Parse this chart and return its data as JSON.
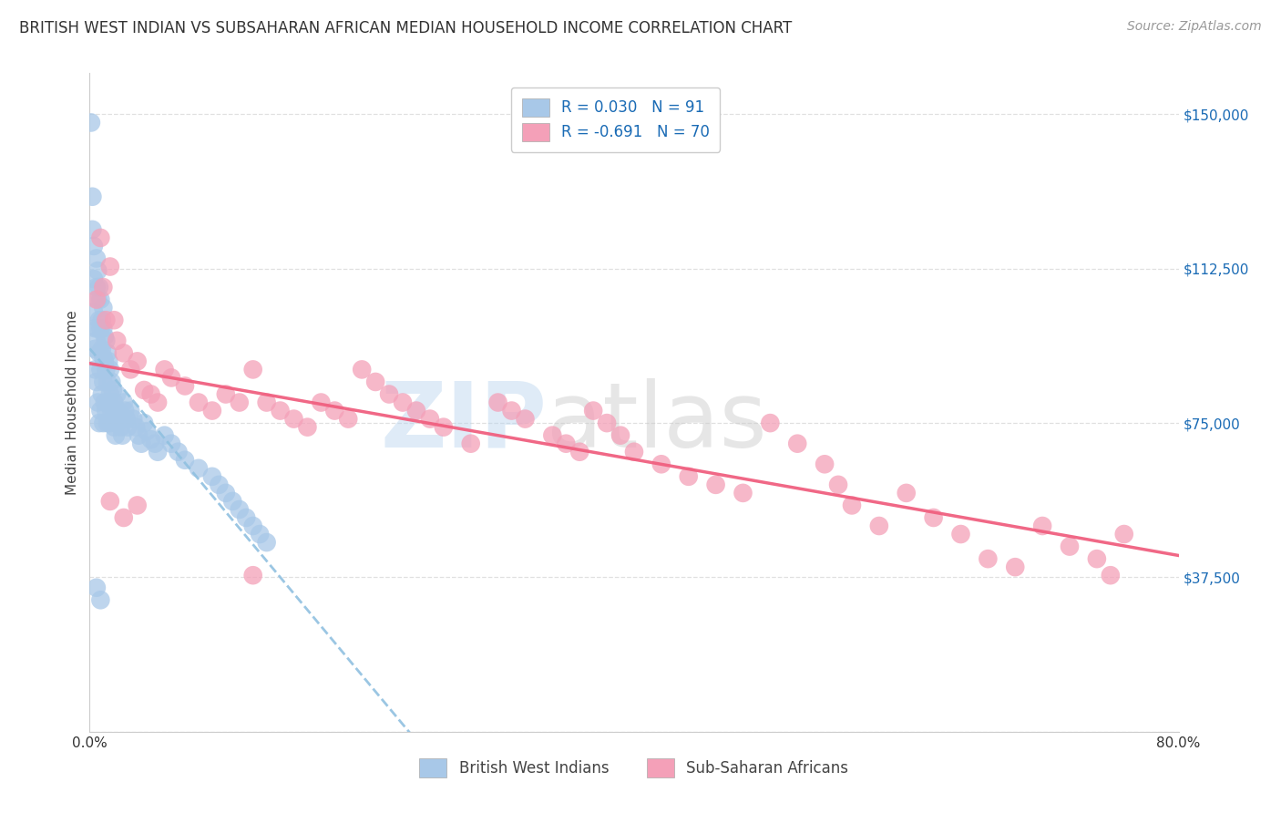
{
  "title": "BRITISH WEST INDIAN VS SUBSAHARAN AFRICAN MEDIAN HOUSEHOLD INCOME CORRELATION CHART",
  "source": "Source: ZipAtlas.com",
  "ylabel": "Median Household Income",
  "xlim": [
    0.0,
    0.8
  ],
  "ylim": [
    0,
    160000
  ],
  "yticks": [
    0,
    37500,
    75000,
    112500,
    150000
  ],
  "ytick_labels": [
    "",
    "$37,500",
    "$75,000",
    "$112,500",
    "$150,000"
  ],
  "xticks": [
    0.0,
    0.1,
    0.2,
    0.3,
    0.4,
    0.5,
    0.6,
    0.7,
    0.8
  ],
  "xtick_labels": [
    "0.0%",
    "",
    "",
    "",
    "",
    "",
    "",
    "",
    "80.0%"
  ],
  "legend_blue_label": "R = 0.030   N = 91",
  "legend_pink_label": "R = -0.691   N = 70",
  "legend_bottom_blue": "British West Indians",
  "legend_bottom_pink": "Sub-Saharan Africans",
  "blue_color": "#a8c8e8",
  "pink_color": "#f4a0b8",
  "blue_line_color": "#90c0e0",
  "pink_line_color": "#f06080",
  "background_color": "#ffffff",
  "grid_color": "#dddddd",
  "blue_x": [
    0.001,
    0.002,
    0.002,
    0.003,
    0.003,
    0.003,
    0.004,
    0.004,
    0.004,
    0.005,
    0.005,
    0.005,
    0.005,
    0.006,
    0.006,
    0.006,
    0.006,
    0.007,
    0.007,
    0.007,
    0.007,
    0.008,
    0.008,
    0.008,
    0.008,
    0.009,
    0.009,
    0.009,
    0.01,
    0.01,
    0.01,
    0.01,
    0.01,
    0.011,
    0.011,
    0.011,
    0.012,
    0.012,
    0.012,
    0.013,
    0.013,
    0.013,
    0.014,
    0.014,
    0.015,
    0.015,
    0.015,
    0.016,
    0.016,
    0.017,
    0.017,
    0.018,
    0.018,
    0.019,
    0.019,
    0.02,
    0.02,
    0.021,
    0.022,
    0.023,
    0.024,
    0.025,
    0.026,
    0.027,
    0.028,
    0.03,
    0.032,
    0.034,
    0.036,
    0.038,
    0.04,
    0.042,
    0.045,
    0.048,
    0.05,
    0.055,
    0.06,
    0.065,
    0.07,
    0.08,
    0.09,
    0.095,
    0.1,
    0.105,
    0.11,
    0.115,
    0.12,
    0.125,
    0.13,
    0.005,
    0.008
  ],
  "blue_y": [
    148000,
    130000,
    122000,
    118000,
    110000,
    102000,
    98000,
    93000,
    88000,
    115000,
    108000,
    95000,
    85000,
    112000,
    105000,
    98000,
    80000,
    108000,
    100000,
    92000,
    75000,
    105000,
    98000,
    88000,
    78000,
    100000,
    93000,
    82000,
    103000,
    98000,
    91000,
    85000,
    75000,
    96000,
    90000,
    80000,
    95000,
    88000,
    78000,
    92000,
    85000,
    75000,
    90000,
    80000,
    88000,
    82000,
    75000,
    85000,
    78000,
    83000,
    76000,
    80000,
    74000,
    78000,
    72000,
    82000,
    75000,
    78000,
    76000,
    74000,
    72000,
    80000,
    78000,
    76000,
    74000,
    78000,
    76000,
    74000,
    72000,
    70000,
    75000,
    73000,
    71000,
    70000,
    68000,
    72000,
    70000,
    68000,
    66000,
    64000,
    62000,
    60000,
    58000,
    56000,
    54000,
    52000,
    50000,
    48000,
    46000,
    35000,
    32000
  ],
  "pink_x": [
    0.005,
    0.008,
    0.01,
    0.012,
    0.015,
    0.018,
    0.02,
    0.025,
    0.03,
    0.035,
    0.04,
    0.045,
    0.05,
    0.055,
    0.06,
    0.07,
    0.08,
    0.09,
    0.1,
    0.11,
    0.12,
    0.13,
    0.14,
    0.15,
    0.16,
    0.17,
    0.18,
    0.19,
    0.2,
    0.21,
    0.22,
    0.23,
    0.24,
    0.25,
    0.26,
    0.28,
    0.3,
    0.31,
    0.32,
    0.34,
    0.35,
    0.36,
    0.37,
    0.38,
    0.39,
    0.4,
    0.42,
    0.44,
    0.46,
    0.48,
    0.5,
    0.52,
    0.54,
    0.55,
    0.56,
    0.58,
    0.6,
    0.62,
    0.64,
    0.66,
    0.68,
    0.7,
    0.72,
    0.74,
    0.75,
    0.76,
    0.015,
    0.025,
    0.035,
    0.12
  ],
  "pink_y": [
    105000,
    120000,
    108000,
    100000,
    113000,
    100000,
    95000,
    92000,
    88000,
    90000,
    83000,
    82000,
    80000,
    88000,
    86000,
    84000,
    80000,
    78000,
    82000,
    80000,
    88000,
    80000,
    78000,
    76000,
    74000,
    80000,
    78000,
    76000,
    88000,
    85000,
    82000,
    80000,
    78000,
    76000,
    74000,
    70000,
    80000,
    78000,
    76000,
    72000,
    70000,
    68000,
    78000,
    75000,
    72000,
    68000,
    65000,
    62000,
    60000,
    58000,
    75000,
    70000,
    65000,
    60000,
    55000,
    50000,
    58000,
    52000,
    48000,
    42000,
    40000,
    50000,
    45000,
    42000,
    38000,
    48000,
    56000,
    52000,
    55000,
    38000
  ],
  "watermark_zip": "ZIP",
  "watermark_atlas": "atlas",
  "title_fontsize": 12,
  "source_fontsize": 10,
  "ylabel_fontsize": 11,
  "tick_fontsize": 11,
  "legend_fontsize": 12
}
